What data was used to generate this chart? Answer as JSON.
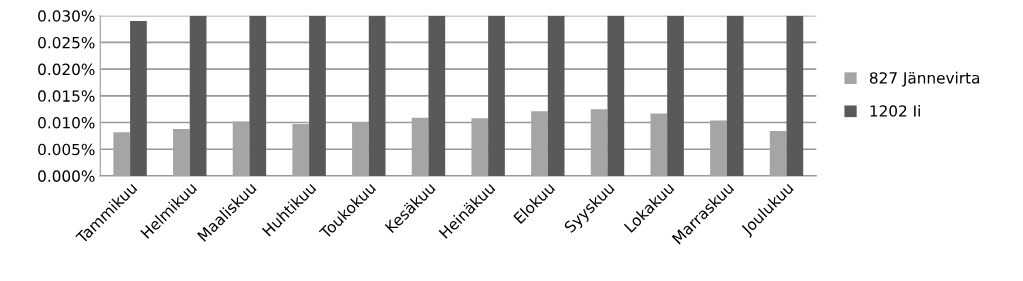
{
  "chart_data": {
    "type": "bar",
    "categories": [
      "Tammikuu",
      "Helmikuu",
      "Maaliskuu",
      "Huhtikuu",
      "Toukokuu",
      "Kesäkuu",
      "Heinäkuu",
      "Elokuu",
      "Syyskuu",
      "Lokakuu",
      "Marraskuu",
      "Joulukuu"
    ],
    "series": [
      {
        "name": "827 Jännevirta",
        "color": "#a5a5a5",
        "values": [
          0.0082,
          0.0088,
          0.0102,
          0.0097,
          0.0101,
          0.0109,
          0.0108,
          0.0121,
          0.0125,
          0.0117,
          0.0104,
          0.0084
        ]
      },
      {
        "name": "1202 Ii",
        "color": "#595959",
        "values": [
          0.029,
          0.03,
          0.03,
          0.03,
          0.03,
          0.03,
          0.03,
          0.03,
          0.03,
          0.03,
          0.03,
          0.03
        ]
      }
    ],
    "ylim": [
      0,
      0.03
    ],
    "yticks": [
      {
        "value": 0,
        "label": "0.000%"
      },
      {
        "value": 0.005,
        "label": "0.005%"
      },
      {
        "value": 0.01,
        "label": "0.010%"
      },
      {
        "value": 0.015,
        "label": "0.015%"
      },
      {
        "value": 0.02,
        "label": "0.020%"
      },
      {
        "value": 0.025,
        "label": "0.025%"
      },
      {
        "value": 0.03,
        "label": "0.030%"
      }
    ],
    "grid": "y",
    "legend": "right"
  }
}
